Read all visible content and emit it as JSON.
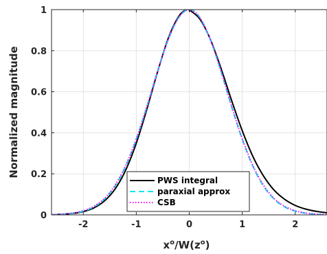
{
  "chart_data": {
    "type": "line",
    "xlabel_base": "x",
    "xlabel_sup1": "o",
    "xlabel_mid": "/W(z",
    "xlabel_sup2": "o",
    "xlabel_end": ")",
    "ylabel": "Normalized magnitude",
    "xlim": [
      -2.6,
      2.6
    ],
    "ylim": [
      0,
      1
    ],
    "xticks": [
      -2,
      -1,
      0,
      1,
      2
    ],
    "yticks": [
      0,
      0.2,
      0.4,
      0.6,
      0.8,
      1
    ],
    "xtick_labels": [
      "-2",
      "-1",
      "0",
      "1",
      "2"
    ],
    "ytick_labels": [
      "0",
      "0.2",
      "0.4",
      "0.6",
      "0.8",
      "1"
    ],
    "grid": true,
    "legend_position": "bottom-center",
    "series": [
      {
        "name": "PWS integral",
        "color": "#000000",
        "style": "solid",
        "x": [
          -2.6,
          -2.4,
          -2.2,
          -2.0,
          -1.8,
          -1.6,
          -1.4,
          -1.2,
          -1.0,
          -0.8,
          -0.6,
          -0.4,
          -0.2,
          -0.05,
          0.0,
          0.2,
          0.4,
          0.6,
          0.8,
          1.0,
          1.2,
          1.4,
          1.6,
          1.8,
          2.0,
          2.2,
          2.4,
          2.6
        ],
        "y": [
          0.001,
          0.003,
          0.007,
          0.016,
          0.034,
          0.068,
          0.126,
          0.218,
          0.349,
          0.515,
          0.695,
          0.858,
          0.967,
          1.0,
          0.998,
          0.954,
          0.854,
          0.713,
          0.557,
          0.41,
          0.285,
          0.19,
          0.121,
          0.076,
          0.046,
          0.028,
          0.017,
          0.01
        ]
      },
      {
        "name": "paraxial approx",
        "color": "#00e5ee",
        "style": "dashed",
        "x": [
          -2.6,
          -2.4,
          -2.2,
          -2.0,
          -1.8,
          -1.6,
          -1.4,
          -1.2,
          -1.0,
          -0.8,
          -0.6,
          -0.4,
          -0.2,
          0.0,
          0.2,
          0.4,
          0.6,
          0.8,
          1.0,
          1.2,
          1.4,
          1.6,
          1.8,
          2.0,
          2.2,
          2.4,
          2.6
        ],
        "y": [
          0.001,
          0.003,
          0.008,
          0.018,
          0.039,
          0.077,
          0.141,
          0.237,
          0.368,
          0.527,
          0.698,
          0.852,
          0.961,
          1.0,
          0.961,
          0.852,
          0.698,
          0.527,
          0.368,
          0.237,
          0.141,
          0.077,
          0.039,
          0.018,
          0.008,
          0.003,
          0.001
        ]
      },
      {
        "name": "CSB",
        "color": "#ff00ff",
        "style": "dotted",
        "x": [
          -2.6,
          -2.4,
          -2.2,
          -2.0,
          -1.8,
          -1.6,
          -1.4,
          -1.2,
          -1.0,
          -0.8,
          -0.6,
          -0.4,
          -0.2,
          0.0,
          0.2,
          0.4,
          0.6,
          0.8,
          1.0,
          1.2,
          1.4,
          1.6,
          1.8,
          2.0,
          2.2,
          2.4,
          2.6
        ],
        "y": [
          0.001,
          0.004,
          0.009,
          0.02,
          0.042,
          0.08,
          0.145,
          0.241,
          0.371,
          0.529,
          0.699,
          0.852,
          0.961,
          1.0,
          0.961,
          0.852,
          0.699,
          0.529,
          0.371,
          0.241,
          0.145,
          0.08,
          0.042,
          0.02,
          0.009,
          0.004,
          0.001
        ]
      }
    ]
  }
}
